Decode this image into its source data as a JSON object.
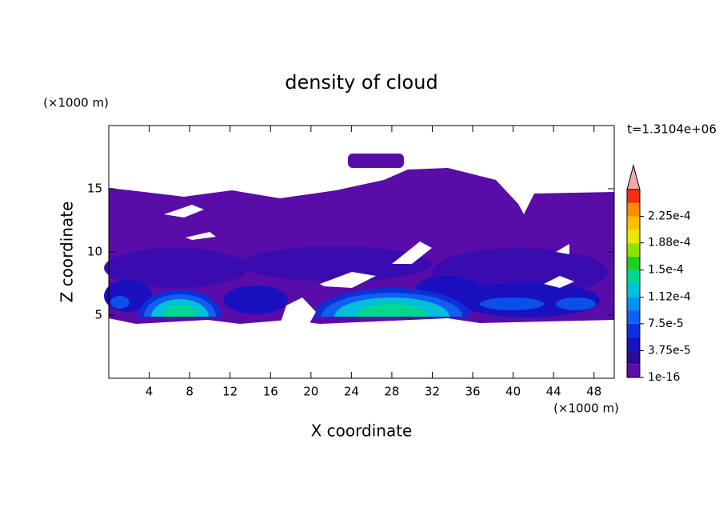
{
  "chart_data": {
    "type": "contour",
    "title": "density of cloud",
    "x_label": "X coordinate",
    "y_label": "Z coordinate",
    "x_unit": "(×1000 m)",
    "y_unit": "(×1000 m)",
    "time_label": "t=1.3104e+06",
    "xlim": [
      0,
      50
    ],
    "xticks": [
      4,
      8,
      12,
      16,
      20,
      24,
      28,
      32,
      36,
      40,
      44,
      48
    ],
    "ylim": [
      0,
      20
    ],
    "yticks": [
      5,
      10,
      15
    ],
    "clim": [
      1e-16,
      0.0002625
    ],
    "cticks": [
      {
        "value": 1e-16,
        "label": "1e-16"
      },
      {
        "value": 3.75e-05,
        "label": "3.75e-5"
      },
      {
        "value": 7.5e-05,
        "label": "7.5e-5"
      },
      {
        "value": 0.000112,
        "label": "1.12e-4"
      },
      {
        "value": 0.00015,
        "label": "1.5e-4"
      },
      {
        "value": 0.000188,
        "label": "1.88e-4"
      },
      {
        "value": 0.000225,
        "label": "2.25e-4"
      }
    ],
    "colors": [
      "#5a0ca8",
      "#2c0a98",
      "#1a10c0",
      "#0a30d8",
      "#1060f0",
      "#0890f0",
      "#00c0d8",
      "#00d890",
      "#20d020",
      "#90e000",
      "#e8e800",
      "#ffc000",
      "#ff8c00",
      "#f03010"
    ],
    "over_color": "#f4a8a8"
  }
}
